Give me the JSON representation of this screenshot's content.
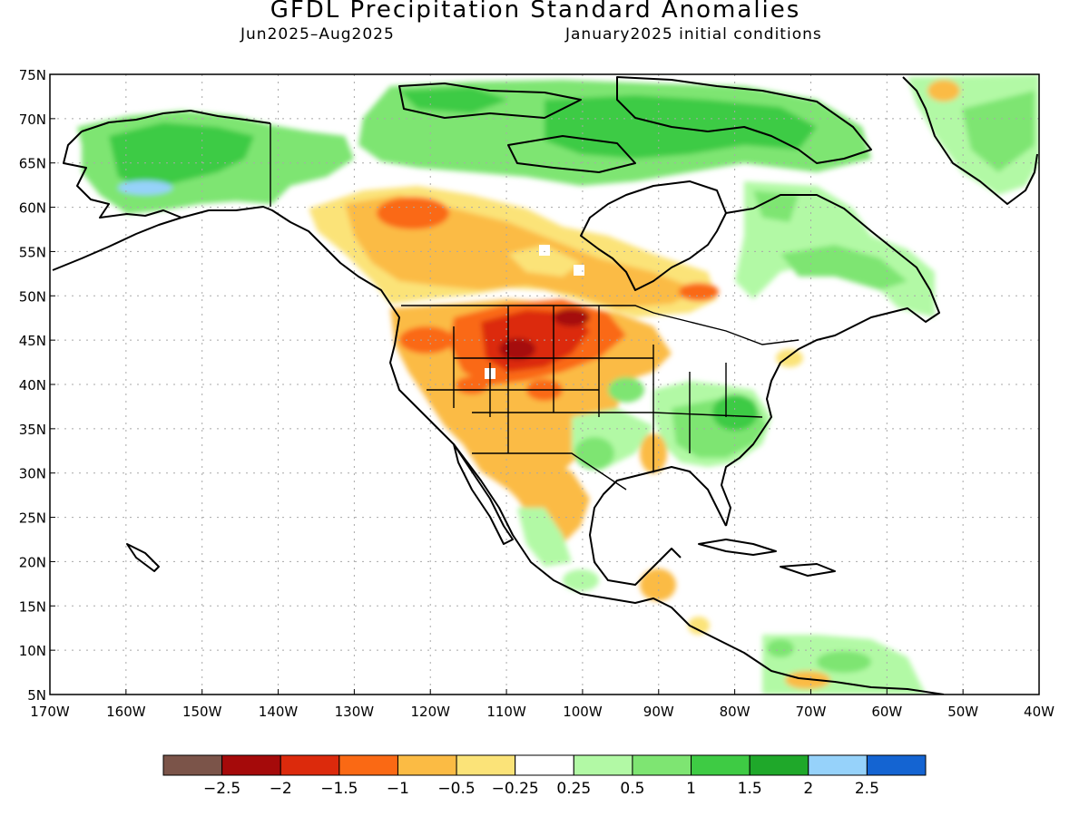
{
  "header": {
    "title": "GFDL Precipitation Standard Anomalies",
    "period": "Jun2025–Aug2025",
    "init": "January2025 initial conditions"
  },
  "map": {
    "lat_labels": [
      "75N",
      "70N",
      "65N",
      "60N",
      "55N",
      "50N",
      "45N",
      "40N",
      "35N",
      "30N",
      "25N",
      "20N",
      "15N",
      "10N",
      "5N"
    ],
    "lon_labels": [
      "170W",
      "160W",
      "150W",
      "140W",
      "130W",
      "120W",
      "110W",
      "100W",
      "90W",
      "80W",
      "70W",
      "60W",
      "50W",
      "40W"
    ],
    "extent": {
      "lon": [
        -170,
        -40
      ],
      "lat": [
        5,
        75
      ]
    }
  },
  "legend": {
    "labels": [
      "−2.5",
      "−2",
      "−1.5",
      "−1",
      "−0.5",
      "−0.25",
      "0.25",
      "0.5",
      "1",
      "1.5",
      "2",
      "2.5"
    ],
    "colors": [
      "#7b5449",
      "#a50a0a",
      "#dc2a0c",
      "#fa6914",
      "#fbbb44",
      "#fbe378",
      "#ffffff",
      "#b2f9a5",
      "#7ee572",
      "#3ecb44",
      "#1fa82a",
      "#96d2fa",
      "#1464d2"
    ]
  }
}
